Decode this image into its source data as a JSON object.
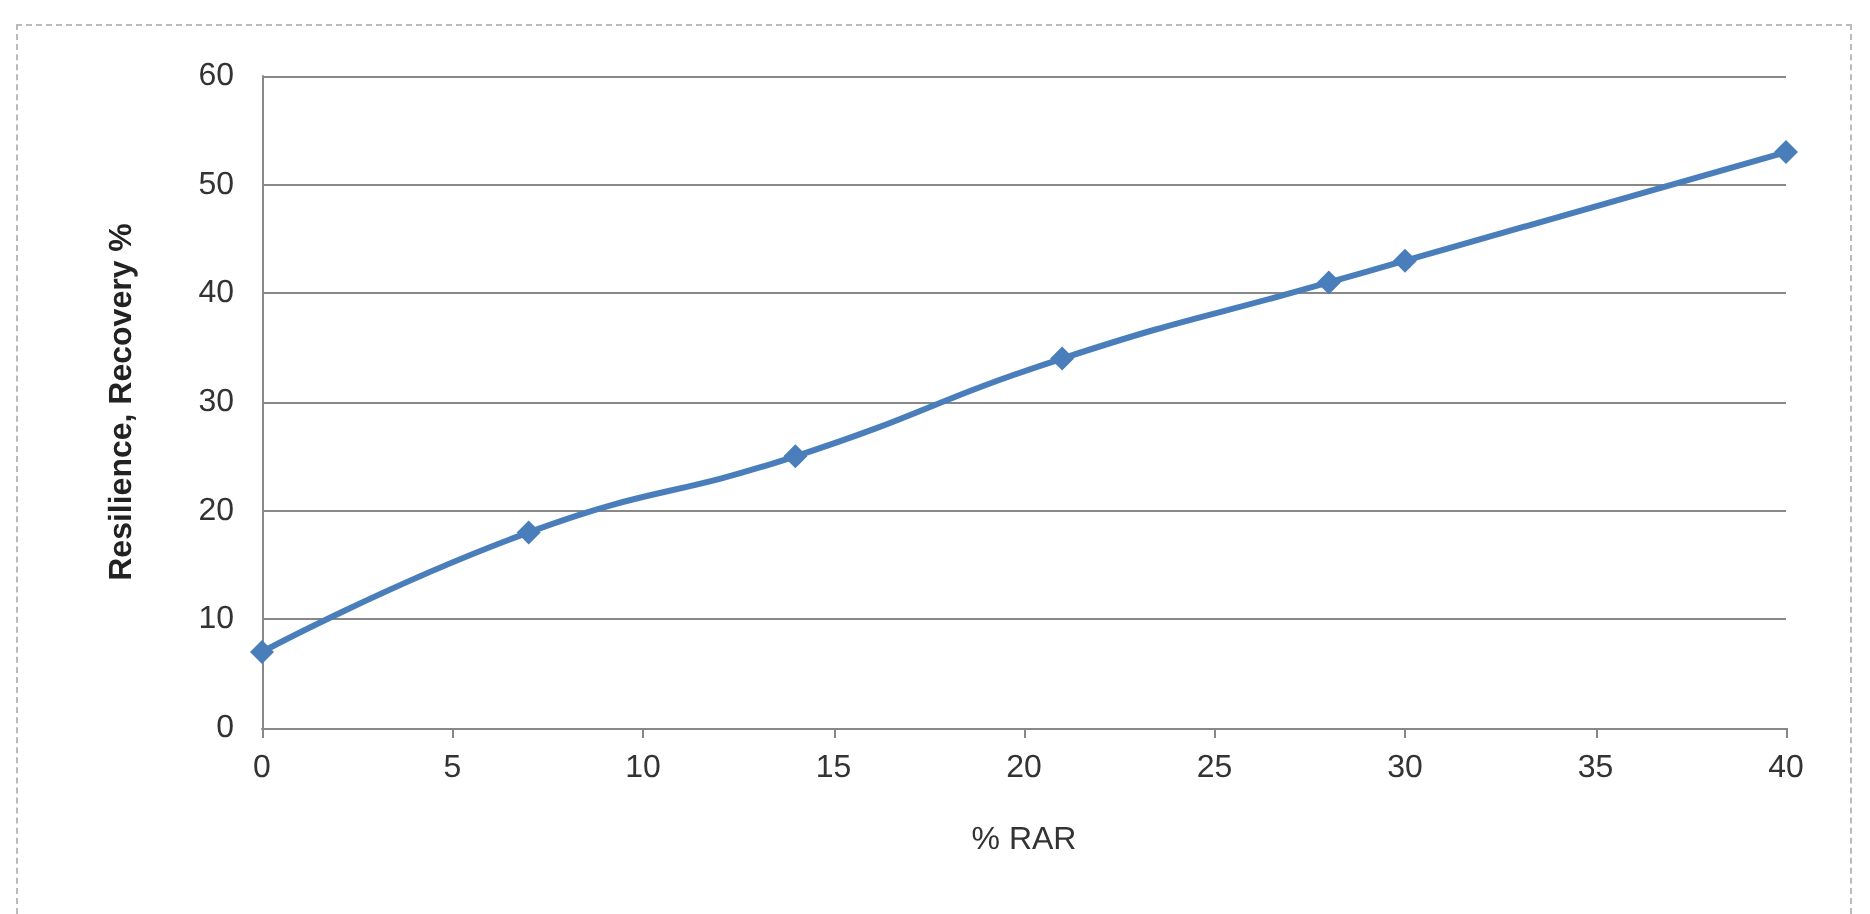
{
  "chart_data": {
    "type": "line",
    "xlabel": "% RAR",
    "ylabel": "Resilience, Recovery %",
    "x": [
      0,
      7,
      14,
      21,
      28,
      30,
      40
    ],
    "series": [
      {
        "color": "#4a7ebb",
        "values": [
          7,
          18,
          25,
          34,
          41,
          43,
          53
        ]
      }
    ],
    "xlim": [
      0,
      40
    ],
    "xticks": [
      0,
      5,
      10,
      15,
      20,
      25,
      30,
      35,
      40
    ],
    "ylim": [
      0,
      60
    ],
    "yticks": [
      0,
      10,
      20,
      30,
      40,
      50,
      60
    ],
    "grid": "y",
    "marker": "diamond",
    "line_style": "solid"
  }
}
